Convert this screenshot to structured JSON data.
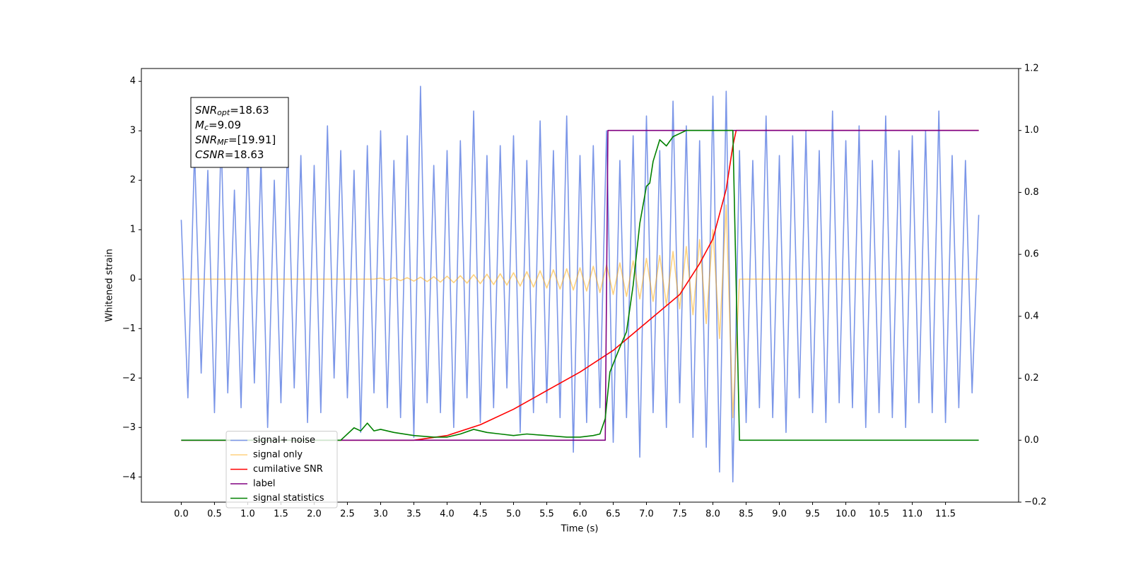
{
  "chart_data": {
    "type": "line",
    "xlabel": "Time (s)",
    "ylabel": "Whitened strain",
    "xlim": [
      -0.6,
      12.6
    ],
    "ylim": [
      -4.51,
      4.26
    ],
    "y2lim": [
      -0.2,
      1.2
    ],
    "xticks": [
      {
        "value": 0,
        "label": "0.0"
      },
      0.5,
      {
        "value": 1,
        "label": "1.0"
      },
      1.5,
      {
        "value": 2,
        "label": "2.0"
      },
      2.5,
      {
        "value": 3,
        "label": "3.0"
      },
      3.5,
      {
        "value": 4,
        "label": "4.0"
      },
      4.5,
      {
        "value": 5,
        "label": "5.0"
      },
      5.5,
      {
        "value": 6,
        "label": "6.0"
      },
      6.5,
      {
        "value": 7,
        "label": "7.0"
      },
      7.5,
      {
        "value": 8,
        "label": "8.0"
      },
      8.5,
      {
        "value": 9,
        "label": "9.0"
      },
      9.5,
      {
        "value": 10,
        "label": "10.0"
      },
      10.5,
      {
        "value": 11,
        "label": "11.0"
      },
      11.5
    ],
    "yticks": [
      {
        "value": -4,
        "label": "−4"
      },
      {
        "value": -3,
        "label": "−3"
      },
      {
        "value": -2,
        "label": "−2"
      },
      {
        "value": -1,
        "label": "−1"
      },
      0,
      1,
      2,
      3,
      4
    ],
    "y2ticks": [
      {
        "value": -0.2,
        "label": "−0.2"
      },
      {
        "value": 0,
        "label": "0.0"
      },
      0.2,
      0.4,
      0.6,
      0.8,
      {
        "value": 1,
        "label": "1.0"
      },
      1.2
    ],
    "legend": "lower left",
    "annotation": [
      {
        "name": "SNR",
        "sub": "opt",
        "text": "=18.63"
      },
      {
        "name": "M",
        "sub": "c",
        "text": "=9.09"
      },
      {
        "name": "SNR",
        "sub": "MF",
        "text": "=[19.91]"
      },
      {
        "name": "CSNR",
        "sub": null,
        "text": "=18.63"
      }
    ],
    "series": [
      {
        "name": "signal+ noise",
        "color": "#7b96e8",
        "opacity": 1,
        "x": [
          0,
          0.1,
          0.2,
          0.3,
          0.4,
          0.5,
          0.6,
          0.7,
          0.8,
          0.9,
          1,
          1.1,
          1.2,
          1.3,
          1.4,
          1.5,
          1.6,
          1.7,
          1.8,
          1.9,
          2,
          2.1,
          2.2,
          2.3,
          2.4,
          2.5,
          2.6,
          2.7,
          2.8,
          2.9,
          3,
          3.1,
          3.2,
          3.3,
          3.4,
          3.5,
          3.6,
          3.7,
          3.8,
          3.9,
          4,
          4.1,
          4.2,
          4.3,
          4.4,
          4.5,
          4.6,
          4.7,
          4.8,
          4.9,
          5,
          5.1,
          5.2,
          5.3,
          5.4,
          5.5,
          5.6,
          5.7,
          5.8,
          5.9,
          6,
          6.1,
          6.2,
          6.3,
          6.4,
          6.5,
          6.6,
          6.7,
          6.8,
          6.9,
          7,
          7.1,
          7.2,
          7.3,
          7.4,
          7.5,
          7.6,
          7.7,
          7.8,
          7.9,
          8,
          8.1,
          8.2,
          8.3,
          8.4,
          8.5,
          8.6,
          8.7,
          8.8,
          8.9,
          9,
          9.1,
          9.2,
          9.3,
          9.4,
          9.5,
          9.6,
          9.7,
          9.8,
          9.9,
          10,
          10.1,
          10.2,
          10.3,
          10.4,
          10.5,
          10.6,
          10.7,
          10.8,
          10.9,
          11,
          11.1,
          11.2,
          11.3,
          11.4,
          11.5,
          11.6,
          11.7,
          11.8,
          11.9,
          12
        ],
        "values": [
          1.2,
          -2.4,
          2.6,
          -1.9,
          2.2,
          -2.7,
          2.9,
          -2.3,
          1.8,
          -2.6,
          2.7,
          -2.1,
          2.4,
          -3.0,
          2.0,
          -2.5,
          2.8,
          -2.2,
          2.5,
          -2.9,
          2.3,
          -2.7,
          3.1,
          -2.0,
          2.6,
          -2.4,
          2.2,
          -3.1,
          2.7,
          -2.3,
          3.0,
          -2.6,
          2.4,
          -2.8,
          2.9,
          -3.2,
          3.9,
          -2.5,
          2.3,
          -2.7,
          2.6,
          -3.0,
          2.8,
          -2.4,
          3.4,
          -2.9,
          2.5,
          -2.6,
          2.7,
          -2.2,
          2.9,
          -3.1,
          2.4,
          -2.7,
          3.2,
          -2.5,
          2.6,
          -2.8,
          3.3,
          -3.5,
          2.5,
          -2.9,
          2.7,
          -2.6,
          3.0,
          -3.3,
          2.4,
          -2.8,
          2.9,
          -3.6,
          3.3,
          -2.7,
          2.6,
          -3.0,
          3.6,
          -2.5,
          3.1,
          -3.2,
          2.8,
          -3.4,
          3.7,
          -3.9,
          3.8,
          -4.1,
          2.6,
          -2.9,
          2.4,
          -2.6,
          3.3,
          -2.8,
          2.5,
          -3.1,
          2.9,
          -2.4,
          3.0,
          -2.7,
          2.6,
          -2.9,
          3.4,
          -2.5,
          2.8,
          -2.6,
          3.1,
          -3.0,
          2.4,
          -2.7,
          3.3,
          -2.8,
          2.6,
          -3.0,
          2.9,
          -2.5,
          3.0,
          -2.7,
          3.4,
          -2.9,
          2.5,
          -2.6,
          2.4,
          -2.3,
          1.3
        ]
      },
      {
        "name": "signal only",
        "color": "#ffa500",
        "opacity": 0.5,
        "x": [
          0,
          0.1,
          0.2,
          0.3,
          0.4,
          0.5,
          0.6,
          0.7,
          0.8,
          0.9,
          1,
          1.1,
          1.2,
          1.3,
          1.4,
          1.5,
          1.6,
          1.7,
          1.8,
          1.9,
          2,
          2.1,
          2.2,
          2.3,
          2.4,
          2.5,
          2.6,
          2.7,
          2.8,
          2.9,
          3,
          3.1,
          3.2,
          3.3,
          3.4,
          3.5,
          3.6,
          3.7,
          3.8,
          3.9,
          4,
          4.1,
          4.2,
          4.3,
          4.4,
          4.5,
          4.6,
          4.7,
          4.8,
          4.9,
          5,
          5.1,
          5.2,
          5.3,
          5.4,
          5.5,
          5.6,
          5.7,
          5.8,
          5.9,
          6,
          6.1,
          6.2,
          6.3,
          6.4,
          6.5,
          6.6,
          6.7,
          6.8,
          6.9,
          7,
          7.1,
          7.2,
          7.3,
          7.4,
          7.5,
          7.6,
          7.7,
          7.8,
          7.9,
          8,
          8.1,
          8.2,
          8.3,
          8.4,
          8.5,
          8.6,
          8.7,
          8.8,
          8.9,
          9,
          9.1,
          9.2,
          9.3,
          9.4,
          9.5,
          9.6,
          9.7,
          9.8,
          9.9,
          10,
          10.1,
          10.2,
          10.3,
          10.4,
          10.5,
          10.6,
          10.7,
          10.8,
          10.9,
          11,
          11.1,
          11.2,
          11.3,
          11.4,
          11.5,
          11.6,
          11.7,
          11.8,
          11.9,
          12
        ],
        "values": [
          0,
          0,
          0,
          0,
          0,
          0,
          0,
          0,
          0,
          0,
          0,
          0,
          0,
          0,
          0,
          0,
          0,
          0,
          0,
          0,
          0,
          0,
          0,
          0,
          0,
          0,
          0,
          0,
          0,
          0,
          0.02,
          -0.02,
          0.03,
          -0.03,
          0.03,
          -0.04,
          0.04,
          -0.05,
          0.05,
          -0.06,
          0.06,
          -0.07,
          0.07,
          -0.08,
          0.09,
          -0.09,
          0.1,
          -0.11,
          0.11,
          -0.12,
          0.13,
          -0.14,
          0.15,
          -0.16,
          0.17,
          -0.18,
          0.19,
          -0.2,
          0.21,
          -0.22,
          0.23,
          -0.24,
          0.26,
          -0.27,
          0.29,
          -0.31,
          0.33,
          -0.35,
          0.37,
          -0.4,
          0.42,
          -0.45,
          0.48,
          -0.52,
          0.56,
          -0.6,
          0.66,
          -0.72,
          0.8,
          -0.9,
          1.0,
          -1.2,
          1.5,
          -2.8,
          0,
          0,
          0,
          0,
          0,
          0,
          0,
          0,
          0,
          0,
          0,
          0,
          0,
          0,
          0,
          0,
          0,
          0,
          0,
          0,
          0,
          0,
          0,
          0,
          0,
          0,
          0,
          0,
          0,
          0,
          0,
          0,
          0,
          0,
          0,
          0,
          0
        ]
      },
      {
        "name": "cumilative SNR",
        "color": "#ff0000",
        "opacity": 1,
        "axis": "y2",
        "x": [
          0,
          3.5,
          4.0,
          4.5,
          5.0,
          5.5,
          6.0,
          6.5,
          7.0,
          7.5,
          7.8,
          8.0,
          8.2,
          8.3,
          8.35,
          12
        ],
        "values": [
          0,
          0,
          0.015,
          0.05,
          0.1,
          0.16,
          0.22,
          0.29,
          0.38,
          0.47,
          0.57,
          0.65,
          0.81,
          0.95,
          1.0,
          1.0
        ]
      },
      {
        "name": "label",
        "color": "#800080",
        "opacity": 1,
        "axis": "y2",
        "x": [
          0,
          6.38,
          6.42,
          12
        ],
        "values": [
          0,
          0,
          1,
          1
        ]
      },
      {
        "name": "signal statistics",
        "color": "#008000",
        "opacity": 1,
        "axis": "y2",
        "x": [
          0,
          2.4,
          2.6,
          2.7,
          2.8,
          2.9,
          3.0,
          3.2,
          3.5,
          3.8,
          4.0,
          4.2,
          4.4,
          4.6,
          4.8,
          5.0,
          5.2,
          5.5,
          5.8,
          6.0,
          6.2,
          6.3,
          6.38,
          6.45,
          6.6,
          6.7,
          6.8,
          6.9,
          7.0,
          7.05,
          7.1,
          7.2,
          7.3,
          7.4,
          7.6,
          8.3,
          8.35,
          8.4,
          12
        ],
        "values": [
          0,
          0,
          0.04,
          0.03,
          0.055,
          0.03,
          0.035,
          0.025,
          0.015,
          0.01,
          0.01,
          0.02,
          0.035,
          0.025,
          0.02,
          0.015,
          0.02,
          0.015,
          0.01,
          0.01,
          0.015,
          0.02,
          0.07,
          0.22,
          0.3,
          0.35,
          0.5,
          0.7,
          0.82,
          0.83,
          0.9,
          0.97,
          0.95,
          0.98,
          1.0,
          1.0,
          0.5,
          0,
          0
        ]
      }
    ]
  }
}
